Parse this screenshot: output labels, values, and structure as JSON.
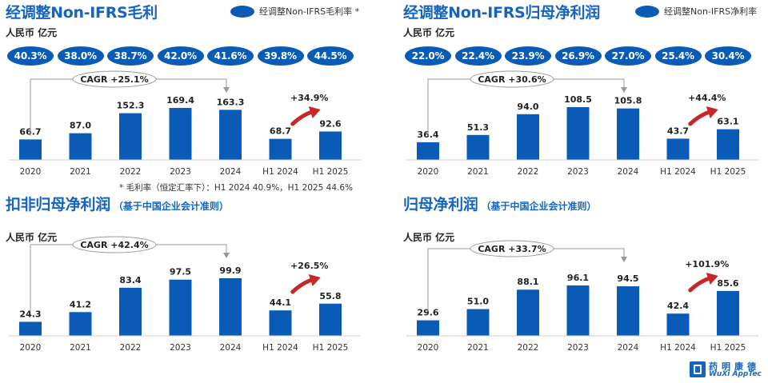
{
  "colors": {
    "bar": "#0a5bb5",
    "title": "#1565c0",
    "growth_arrow": "#c62828",
    "axis": "#999999"
  },
  "footnote": "* 毛利率（恒定汇率下）：H1 2024 40.9%，H1 2025 44.6%",
  "logo": {
    "cn": "药明康德",
    "en": "WuXi AppTec"
  },
  "chart_data": [
    {
      "type": "bar",
      "title": "经调整Non-IFRS毛利",
      "subtitle": "",
      "unit": "人民币 亿元",
      "legend": "经调整Non-IFRS毛利率 *",
      "legend_position": "top-right",
      "categories": [
        "2020",
        "2021",
        "2022",
        "2023",
        "2024",
        "H1 2024",
        "H1 2025"
      ],
      "values": [
        66.7,
        87.0,
        152.3,
        169.4,
        163.3,
        68.7,
        92.6
      ],
      "value_labels": [
        "66.7",
        "87.0",
        "152.3",
        "169.4",
        "163.3",
        "68.7",
        "92.6"
      ],
      "margin_labels": [
        "40.3%",
        "38.0%",
        "38.7%",
        "42.0%",
        "41.6%",
        "39.8%",
        "44.5%"
      ],
      "cagr": "CAGR +25.1%",
      "growth": "+34.9%",
      "ylim": [
        0,
        180
      ],
      "grid": false
    },
    {
      "type": "bar",
      "title": "经调整Non-IFRS归母净利润",
      "subtitle": "",
      "unit": "人民币 亿元",
      "legend": "经调整Non-IFRS净利率",
      "legend_position": "top-right",
      "categories": [
        "2020",
        "2021",
        "2022",
        "2023",
        "2024",
        "H1 2024",
        "H1 2025"
      ],
      "values": [
        36.4,
        51.3,
        94.0,
        108.5,
        105.8,
        43.7,
        63.1
      ],
      "value_labels": [
        "36.4",
        "51.3",
        "94.0",
        "108.5",
        "105.8",
        "43.7",
        "63.1"
      ],
      "margin_labels": [
        "22.0%",
        "22.4%",
        "23.9%",
        "26.9%",
        "27.0%",
        "25.4%",
        "30.4%"
      ],
      "cagr": "CAGR +30.6%",
      "growth": "+44.4%",
      "ylim": [
        0,
        115
      ],
      "grid": false
    },
    {
      "type": "bar",
      "title": "扣非归母净利润",
      "subtitle": "（基于中国企业会计准则）",
      "unit": "人民币 亿元",
      "legend": "",
      "categories": [
        "2020",
        "2021",
        "2022",
        "2023",
        "2024",
        "H1 2024",
        "H1 2025"
      ],
      "values": [
        24.3,
        41.2,
        83.4,
        97.5,
        99.9,
        44.1,
        55.8
      ],
      "value_labels": [
        "24.3",
        "41.2",
        "83.4",
        "97.5",
        "99.9",
        "44.1",
        "55.8"
      ],
      "margin_labels": [],
      "cagr": "CAGR +42.4%",
      "growth": "+26.5%",
      "ylim": [
        0,
        105
      ],
      "grid": false
    },
    {
      "type": "bar",
      "title": "归母净利润",
      "subtitle": "（基于中国企业会计准则）",
      "unit": "人民币 亿元",
      "legend": "",
      "categories": [
        "2020",
        "2021",
        "2022",
        "2023",
        "2024",
        "H1 2024",
        "H1 2025"
      ],
      "values": [
        29.6,
        51.0,
        88.1,
        96.1,
        94.5,
        42.4,
        85.6
      ],
      "value_labels": [
        "29.6",
        "51.0",
        "88.1",
        "96.1",
        "94.5",
        "42.4",
        "85.6"
      ],
      "margin_labels": [],
      "cagr": "CAGR +33.7%",
      "growth": "+101.9%",
      "ylim": [
        0,
        101
      ],
      "grid": false
    }
  ]
}
